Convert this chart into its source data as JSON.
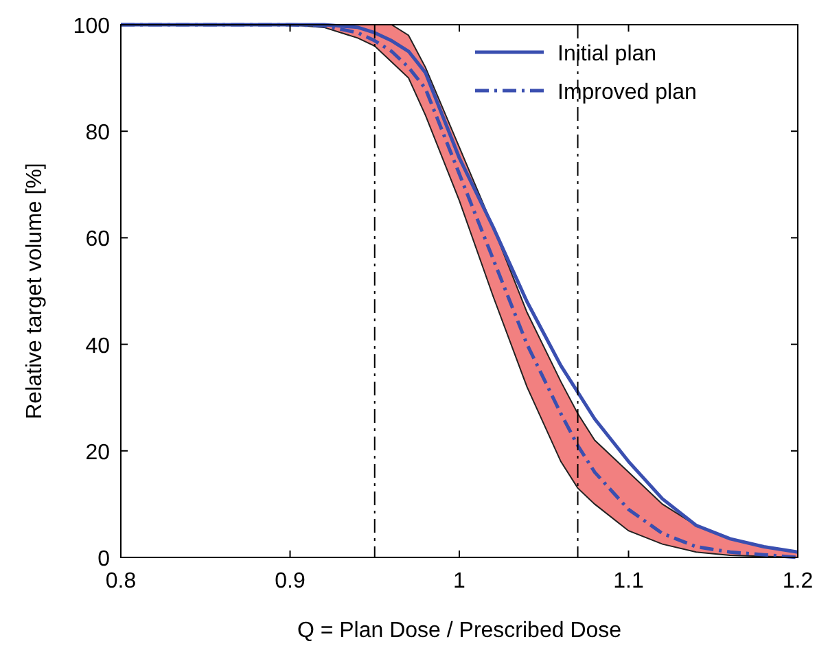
{
  "chart_data": {
    "type": "line",
    "xlabel": "Q = Plan Dose / Prescribed Dose",
    "ylabel": "Relative target volume [%]",
    "xlim": [
      0.8,
      1.2
    ],
    "ylim": [
      0,
      100
    ],
    "xticks": [
      0.8,
      0.9,
      1,
      1.1,
      1.2
    ],
    "yticks": [
      0,
      20,
      40,
      60,
      80,
      100
    ],
    "grid": false,
    "legend": "top right",
    "marker": "none",
    "x": [
      0.8,
      0.9,
      0.92,
      0.94,
      0.95,
      0.96,
      0.97,
      0.98,
      1.0,
      1.02,
      1.04,
      1.06,
      1.07,
      1.08,
      1.1,
      1.12,
      1.14,
      1.16,
      1.18,
      1.2
    ],
    "series": [
      {
        "name": "Initial plan",
        "color": "#3a4fb0",
        "line_style": "solid",
        "values": [
          100,
          100,
          100,
          99.5,
          98.5,
          97,
          95,
          91,
          75,
          62,
          48,
          36,
          31,
          26,
          18,
          11,
          6,
          3.5,
          2,
          1
        ]
      },
      {
        "name": "Improved plan",
        "color": "#3a4fb0",
        "line_style": "dashed",
        "values": [
          100,
          100,
          99.8,
          98.5,
          97,
          95,
          92,
          88,
          72,
          56,
          40,
          27,
          21,
          16,
          9,
          4.5,
          2,
          1,
          0.5,
          0
        ],
        "lower": [
          100,
          100,
          99.5,
          97.5,
          96,
          93,
          90,
          83,
          67,
          49,
          32,
          18,
          13,
          10,
          5,
          2.5,
          1,
          0.4,
          0.2,
          0
        ],
        "upper": [
          100,
          100,
          100,
          100,
          100,
          100,
          98,
          92,
          77,
          62,
          46,
          33,
          27,
          22,
          16,
          10,
          6,
          3.5,
          2,
          1
        ]
      }
    ],
    "ref_lines": [
      {
        "axis": "x",
        "value": 0.95,
        "color": "#000000",
        "line_style": "dashed"
      },
      {
        "axis": "x",
        "value": 1.07,
        "color": "#000000",
        "line_style": "dashed"
      }
    ]
  }
}
